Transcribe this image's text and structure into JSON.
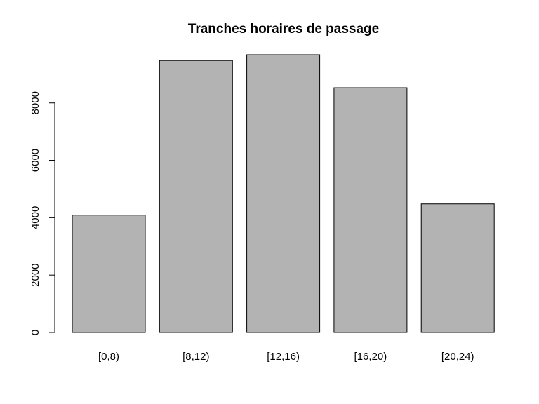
{
  "chart_data": {
    "type": "bar",
    "title": "Tranches horaires de passage",
    "xlabel": "",
    "ylabel": "",
    "categories": [
      "[0,8)",
      "[8,12)",
      "[12,16)",
      "[16,20)",
      "[20,24)"
    ],
    "values": [
      4090,
      9480,
      9680,
      8530,
      4480
    ],
    "ylim": [
      0,
      9680
    ],
    "yticks": [
      0,
      2000,
      4000,
      6000,
      8000
    ],
    "ytick_labels": [
      "0",
      "2000",
      "4000",
      "6000",
      "8000"
    ],
    "grid": false,
    "legend": "none",
    "colors": {
      "bar_fill": "#b3b3b3",
      "bar_stroke": "#000000",
      "axis": "#000000"
    }
  }
}
